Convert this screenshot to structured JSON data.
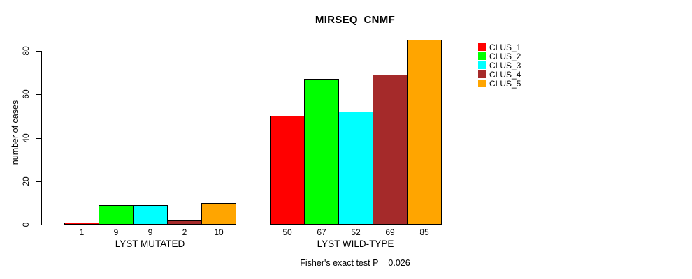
{
  "chart_data": {
    "type": "bar",
    "title": "MIRSEQ_CNMF",
    "ylabel": "number of cases",
    "xlabel": "",
    "ylim": [
      0,
      85
    ],
    "yticks": [
      0,
      20,
      40,
      60,
      80
    ],
    "categories": [
      "LYST MUTATED",
      "LYST WILD-TYPE"
    ],
    "series": [
      {
        "name": "CLUS_1",
        "color": "#FF0000",
        "values": [
          1,
          50
        ]
      },
      {
        "name": "CLUS_2",
        "color": "#00FF00",
        "values": [
          9,
          67
        ]
      },
      {
        "name": "CLUS_3",
        "color": "#00FFFF",
        "values": [
          9,
          52
        ]
      },
      {
        "name": "CLUS_4",
        "color": "#A52A2A",
        "values": [
          2,
          69
        ]
      },
      {
        "name": "CLUS_5",
        "color": "#FFA500",
        "values": [
          10,
          85
        ]
      }
    ],
    "bar_value_labels": [
      [
        "1",
        "9",
        "9",
        "2",
        "10"
      ],
      [
        "50",
        "67",
        "52",
        "69",
        "85"
      ]
    ],
    "legend": {
      "position": "top-right-inside",
      "entries": [
        "CLUS_1",
        "CLUS_2",
        "CLUS_3",
        "CLUS_4",
        "CLUS_5"
      ]
    },
    "annotation": "Fisher's exact test P = 0.026",
    "grid": false,
    "bar_border_color": "#000000",
    "background_color": "#FFFFFF",
    "text_color": "#000000"
  }
}
